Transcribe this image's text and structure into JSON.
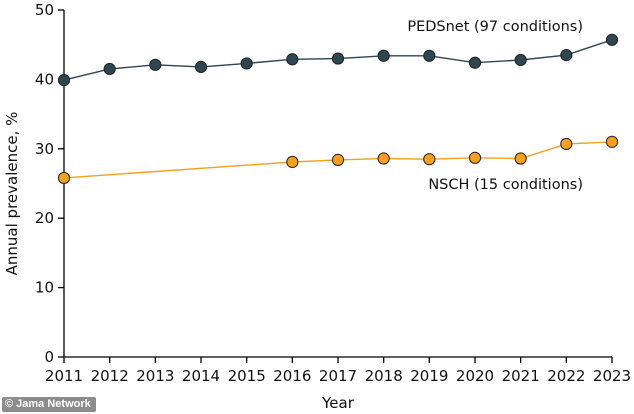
{
  "chart_data": {
    "type": "line",
    "xlabel": "Year",
    "ylabel": "Annual prevalence, %",
    "ylim": [
      0,
      50
    ],
    "y_ticks": [
      "0",
      "10",
      "20",
      "30",
      "40",
      "50"
    ],
    "x_ticks": [
      "2011",
      "2012",
      "2013",
      "2014",
      "2015",
      "2016",
      "2017",
      "2018",
      "2019",
      "2020",
      "2021",
      "2022",
      "2023"
    ],
    "grid": false,
    "legend": "inline labels",
    "series": [
      {
        "name": "PEDSnet (97 conditions)",
        "color": "#2d4650",
        "x": [
          2011,
          2012,
          2013,
          2014,
          2015,
          2016,
          2017,
          2018,
          2019,
          2020,
          2021,
          2022,
          2023
        ],
        "values": [
          39.9,
          41.5,
          42.1,
          41.8,
          42.3,
          42.9,
          43.0,
          43.4,
          43.4,
          42.4,
          42.8,
          43.5,
          45.7
        ]
      },
      {
        "name": "NSCH (15 conditions)",
        "color": "#f5a01f",
        "x": [
          2011,
          2016,
          2017,
          2018,
          2019,
          2020,
          2021,
          2022,
          2023
        ],
        "values": [
          25.8,
          28.1,
          28.4,
          28.6,
          28.5,
          28.7,
          28.6,
          30.7,
          31.0
        ]
      }
    ]
  },
  "watermark": {
    "text": "© Jama Network"
  }
}
